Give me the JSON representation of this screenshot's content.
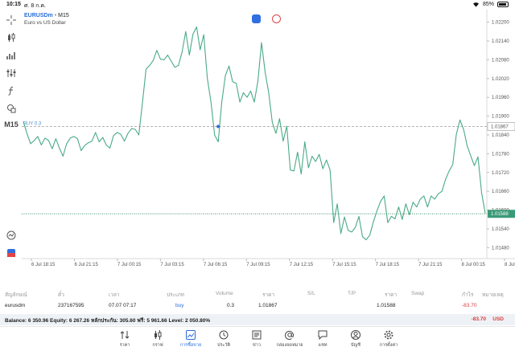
{
  "status_bar": {
    "time": "10:15",
    "date": "ศ. 8 ก.ค.",
    "battery": "85%"
  },
  "toolbar": {
    "timeframe": "M15"
  },
  "chart_header": {
    "symbol": "EURUSDm",
    "timeframe": "M15",
    "description": "Euro vs US Dollar",
    "position_label": "BUY 0.3"
  },
  "chart_data": {
    "type": "line",
    "series": [
      {
        "values": [
          1.01882,
          1.01845,
          1.01812,
          1.01822,
          1.01835,
          1.01808,
          1.0183,
          1.01822,
          1.01796,
          1.01828,
          1.01798,
          1.01772,
          1.01812,
          1.0183,
          1.01835,
          1.01828,
          1.0179,
          1.01806,
          1.01815,
          1.0182,
          1.01848,
          1.01818,
          1.01832,
          1.01808,
          1.01798,
          1.01838,
          1.01848,
          1.01842,
          1.0182,
          1.01845,
          1.0186,
          1.01858,
          1.0184,
          1.01942,
          1.0205,
          1.02062,
          1.02078,
          1.0211,
          1.02082,
          1.0208,
          1.02095,
          1.02075,
          1.02056,
          1.02062,
          1.02105,
          1.0217,
          1.02095,
          1.02162,
          1.02185,
          1.02112,
          1.0216,
          1.0202,
          1.01945,
          1.0184,
          1.01818,
          1.01945,
          1.0203,
          1.0206,
          1.0201,
          1.02005,
          1.01945,
          1.01975,
          1.0196,
          1.0198,
          1.01945,
          1.02012,
          1.02135,
          1.0204,
          1.01975,
          1.0188,
          1.01845,
          1.01892,
          1.0182,
          1.01868,
          1.01728,
          1.01725,
          1.01785,
          1.01715,
          1.01818,
          1.01735,
          1.01772,
          1.01755,
          1.01778,
          1.01732,
          1.0176,
          1.01728,
          1.0156,
          1.0162,
          1.01525,
          1.01578,
          1.01535,
          1.0153,
          1.01545,
          1.0158,
          1.01515,
          1.01505,
          1.0152,
          1.01562,
          1.01598,
          1.01628,
          1.01645,
          1.0156,
          1.0158,
          1.01572,
          1.0161,
          1.0157,
          1.0162,
          1.01585,
          1.01625,
          1.0161,
          1.01635,
          1.01645,
          1.0161,
          1.01645,
          1.01635,
          1.01652,
          1.0166,
          1.01698,
          1.01725,
          1.01745,
          1.01842,
          1.01888,
          1.01858,
          1.01805,
          1.01772,
          1.01742,
          1.0177,
          1.01655,
          1.0159
        ]
      }
    ],
    "x_ticks": [
      "6 Jul 18:15",
      "6 Jul 21:15",
      "7 Jul 00:15",
      "7 Jul 03:15",
      "7 Jul 06:15",
      "7 Jul 09:15",
      "7 Jul 12:15",
      "7 Jul 15:15",
      "7 Jul 18:15",
      "7 Jul 21:15",
      "8 Jul 00:15",
      "8 Jul 03:15"
    ],
    "y_ticks": [
      "1.02200",
      "1.02140",
      "1.02080",
      "1.02020",
      "1.01960",
      "1.01900",
      "1.01840",
      "1.01780",
      "1.01720",
      "1.01660",
      "1.01600",
      "1.01540",
      "1.01480"
    ],
    "ylim": [
      1.01445,
      1.02235
    ],
    "position_line": {
      "label": "BUY 0.3",
      "value": 1.01867,
      "value_label": "1.01867"
    },
    "bid_line": {
      "value": 1.01588,
      "value_label": "1.01588"
    },
    "entry_point_index": 54,
    "line_color": "#4aaa86",
    "position_line_color": "#b4b4b4",
    "bid_line_color": "#3c8a6a"
  },
  "table": {
    "headers": [
      "สัญลักษณ์",
      "ตั๋ว",
      "เวลา",
      "ประเภท",
      "Volume",
      "ราคา",
      "S/L",
      "T/P",
      "ราคา",
      "Swap",
      "กำไร",
      "หมายเหตุ"
    ],
    "row": {
      "symbol": "eurusdm",
      "ticket": "237167595",
      "time": "07.07 07:17",
      "type": "buy",
      "volume": "0.3",
      "open_price": "1.01867",
      "current_price": "1.01588",
      "profit": "-83.70"
    }
  },
  "balance_bar": {
    "text": "Balance: 6 350.96 Equity: 6 267.26 หลักประกัน: 305.60 ฟรี: 5 961.66 Level: 2 050.80%",
    "profit": "-83.70",
    "currency": "USD"
  },
  "tabs": [
    {
      "label": "ราคา",
      "icon": "quotes-icon"
    },
    {
      "label": "กราฟ",
      "icon": "candles-icon"
    },
    {
      "label": "การซื้อขาย",
      "icon": "trade-icon",
      "active": true
    },
    {
      "label": "ประวัติ",
      "icon": "history-icon"
    },
    {
      "label": "ข่าว",
      "icon": "news-icon"
    },
    {
      "label": "กล่องจดหมาย",
      "icon": "mailbox-icon"
    },
    {
      "label": "แชท",
      "icon": "chat-icon"
    },
    {
      "label": "บัญชี",
      "icon": "account-icon"
    },
    {
      "label": "การตั้งค่า",
      "icon": "settings-icon"
    }
  ],
  "colors": {
    "accent": "#2a6dd9",
    "loss": "#d93b3b"
  }
}
